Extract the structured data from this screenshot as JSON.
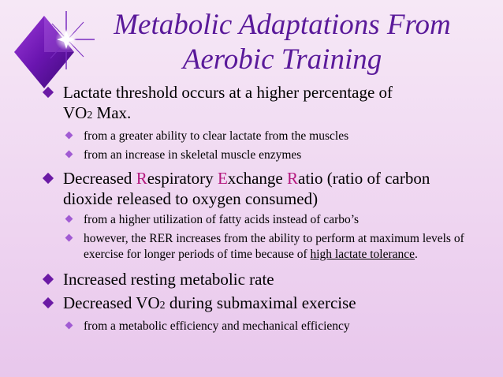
{
  "title": {
    "line1": "Metabolic Adaptations From",
    "line2": "Aerobic Training"
  },
  "bullets": {
    "b1": {
      "text_a": "Lactate threshold occurs at a higher percentage of",
      "vo": "VO",
      "sub": "2",
      "text_b": " Max.",
      "sub1": "from a greater ability to clear lactate from the muscles",
      "sub2": "from an increase in skeletal muscle enzymes"
    },
    "b2": {
      "p1": "Decreased ",
      "R1": "R",
      "p2": "espiratory ",
      "E": "E",
      "p3": "xchange ",
      "R2": "R",
      "p4": "atio (ratio of carbon dioxide released to oxygen consumed)",
      "sub1": "from a higher utilization of fatty acids instead of carbo’s",
      "sub2_a": "however, the RER increases from the ability to perform at maximum levels of exercise for longer periods of time because of ",
      "sub2_link": "high lactate tolerance",
      "sub2_b": "."
    },
    "b3": {
      "text": "Increased resting metabolic rate"
    },
    "b4": {
      "a": "Decreased VO",
      "sub": "2",
      "b": " during submaximal exercise",
      "sub1": "from a metabolic efficiency and mechanical efficiency"
    }
  },
  "colors": {
    "title": "#5a1a9a",
    "bullet": "#6b1aa5",
    "highlight": "#b3157c"
  }
}
